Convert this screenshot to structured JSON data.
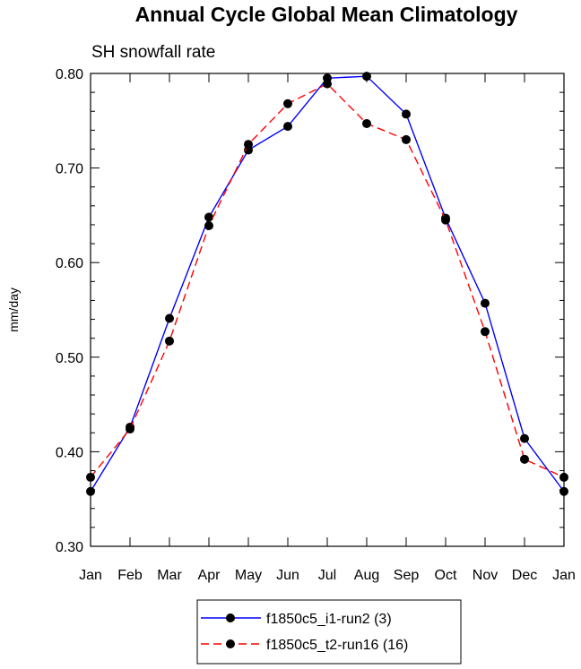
{
  "chart_data": {
    "type": "line",
    "title": "Annual Cycle Global Mean Climatology",
    "subtitle": "SH snowfall rate",
    "ylabel": "mm/day",
    "xlabel": "",
    "categories": [
      "Jan",
      "Feb",
      "Mar",
      "Apr",
      "May",
      "Jun",
      "Jul",
      "Aug",
      "Sep",
      "Oct",
      "Nov",
      "Dec",
      "Jan"
    ],
    "ylim": [
      0.3,
      0.8
    ],
    "yticks": [
      "0.30",
      "0.40",
      "0.50",
      "0.60",
      "0.70",
      "0.80"
    ],
    "grid": false,
    "legend_position": "bottom",
    "series": [
      {
        "name": "f1850c5_i1-run2 (3)",
        "color": "#0000ff",
        "line_style": "solid",
        "marker": "filled-circle",
        "values": [
          0.358,
          0.426,
          0.541,
          0.648,
          0.719,
          0.744,
          0.795,
          0.797,
          0.757,
          0.647,
          0.557,
          0.414,
          0.358
        ]
      },
      {
        "name": "f1850c5_t2-run16 (16)",
        "color": "#ff0000",
        "line_style": "dashed",
        "marker": "filled-circle",
        "values": [
          0.373,
          0.424,
          0.517,
          0.639,
          0.725,
          0.768,
          0.789,
          0.747,
          0.73,
          0.645,
          0.527,
          0.392,
          0.373
        ]
      }
    ]
  }
}
